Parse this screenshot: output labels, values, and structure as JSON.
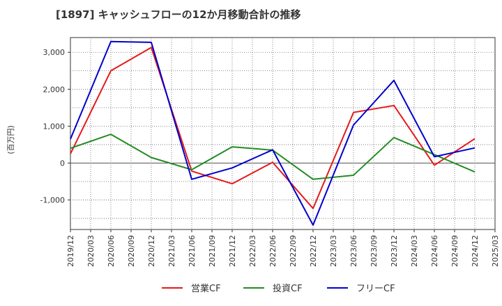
{
  "chart_data": {
    "type": "line",
    "title": "[1897]  キャッシュフローの12か月移動合計の推移",
    "ylabel": "(百万円)",
    "xlabel": "",
    "ylim": [
      -1800,
      3400
    ],
    "yticks": [
      3000,
      2000,
      1000,
      0,
      -1000
    ],
    "ytick_labels": [
      "3,000",
      "2,000",
      "1,000",
      "0",
      "-1,000"
    ],
    "x_tick_labels": [
      "2019/12",
      "2020/03",
      "2020/06",
      "2020/09",
      "2020/12",
      "2021/03",
      "2021/06",
      "2021/09",
      "2021/12",
      "2022/03",
      "2022/06",
      "2022/09",
      "2022/12",
      "2023/03",
      "2023/06",
      "2023/09",
      "2023/12",
      "2024/03",
      "2024/06",
      "2024/09",
      "2024/12",
      "2025/03"
    ],
    "x": [
      "2019/12",
      "2020/06",
      "2020/12",
      "2021/06",
      "2021/12",
      "2022/06",
      "2022/12",
      "2023/06",
      "2023/12",
      "2024/06",
      "2024/12"
    ],
    "series": [
      {
        "name": "営業CF",
        "color": "#e41a1c",
        "values": [
          250,
          2500,
          3130,
          -220,
          -560,
          20,
          -1230,
          1370,
          1560,
          -60,
          660
        ]
      },
      {
        "name": "投資CF",
        "color": "#238b23",
        "values": [
          400,
          780,
          150,
          -180,
          440,
          350,
          -440,
          -330,
          690,
          230,
          -240
        ]
      },
      {
        "name": "フリーCF",
        "color": "#0000cd",
        "values": [
          650,
          3290,
          3270,
          -440,
          -130,
          360,
          -1680,
          1030,
          2240,
          170,
          410
        ]
      }
    ],
    "legend_position": "bottom",
    "grid": true
  }
}
